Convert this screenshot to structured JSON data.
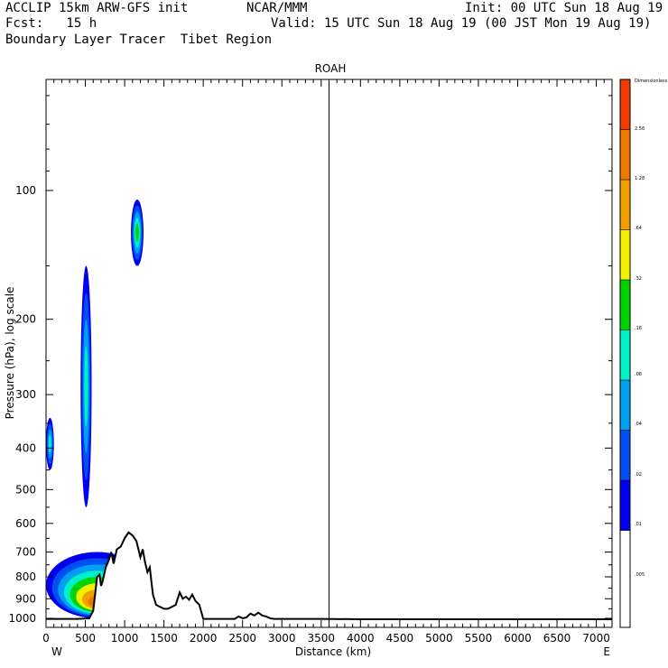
{
  "header": {
    "line1_left": "ACCLIP 15km ARW-GFS init",
    "line1_center": "NCAR/MMM",
    "line1_right": "Init: 00 UTC Sun 18 Aug 19",
    "line2_left": "Fcst:   15 h",
    "line2_right": "Valid: 15 UTC Sun 18 Aug 19 (00 JST Mon 19 Aug 19)",
    "line3": "Boundary Layer Tracer  Tibet Region"
  },
  "chart_data": {
    "type": "heatmap",
    "title": "ROAH",
    "xlabel": "Distance (km)",
    "ylabel": "Pressure (hPa), log scale",
    "xlim": [
      0,
      7200
    ],
    "ylim_hpa": [
      1050,
      55
    ],
    "y_scale": "log",
    "x_ticks": [
      0,
      500,
      1000,
      1500,
      2000,
      2500,
      3000,
      3500,
      4000,
      4500,
      5000,
      5500,
      6000,
      6500,
      7000
    ],
    "y_ticks": [
      100,
      200,
      300,
      400,
      500,
      600,
      700,
      800,
      900,
      1000
    ],
    "x_end_labels": {
      "left": "W",
      "right": "E"
    },
    "station_marker": {
      "label": "ROAH",
      "x_km": 3600
    },
    "colorbar": {
      "title": "Dimensionless",
      "levels": [
        ".005",
        ".01",
        ".02",
        ".04",
        ".08",
        ".16",
        ".32",
        ".64",
        "1.28",
        "2.56"
      ],
      "colors": [
        "#ffffff",
        "#0000f0",
        "#0050f0",
        "#00a0f0",
        "#00f0c8",
        "#00d200",
        "#f0f000",
        "#f0a000",
        "#f07800",
        "#f03c00"
      ]
    },
    "terrain_surface": {
      "x_km": [
        0,
        400,
        550,
        600,
        650,
        680,
        700,
        720,
        760,
        800,
        830,
        860,
        900,
        950,
        1000,
        1050,
        1100,
        1150,
        1200,
        1230,
        1260,
        1290,
        1320,
        1340,
        1360,
        1400,
        1450,
        1500,
        1550,
        1600,
        1650,
        1700,
        1740,
        1780,
        1820,
        1860,
        1900,
        1950,
        2000,
        2200,
        2400,
        2450,
        2500,
        2550,
        2600,
        2650,
        2700,
        2750,
        2800,
        2850,
        2900,
        3000,
        3500,
        4000,
        4500,
        5000,
        6000,
        7200
      ],
      "p_hpa": [
        1003,
        1003,
        1000,
        960,
        800,
        790,
        840,
        820,
        760,
        730,
        700,
        745,
        690,
        680,
        650,
        630,
        640,
        660,
        720,
        690,
        740,
        780,
        760,
        820,
        880,
        930,
        940,
        950,
        950,
        940,
        930,
        870,
        900,
        890,
        905,
        880,
        910,
        930,
        1003,
        1003,
        1003,
        990,
        1000,
        995,
        975,
        985,
        970,
        985,
        990,
        1000,
        1003,
        1003,
        1003,
        1005,
        1005,
        1005,
        1005,
        1005
      ]
    },
    "tracer_fields": [
      {
        "name": "lower boundary layer band",
        "level": "1.28",
        "x_km": [
          0,
          1300
        ],
        "p_hpa_top": 700,
        "p_hpa_bottom": 1000
      },
      {
        "name": "upper plume near 1150 km",
        "level": ".16",
        "x_km": [
          1080,
          1240
        ],
        "p_hpa_top": 105,
        "p_hpa_bottom": 150
      },
      {
        "name": "narrow plume near 500 km",
        "level": ".08",
        "x_km": [
          440,
          580
        ],
        "p_hpa_top": 150,
        "p_hpa_bottom": 550
      },
      {
        "name": "isolated patch near 0 km",
        "level": ".08",
        "x_km": [
          0,
          100
        ],
        "p_hpa_top": 340,
        "p_hpa_bottom": 450
      }
    ]
  }
}
